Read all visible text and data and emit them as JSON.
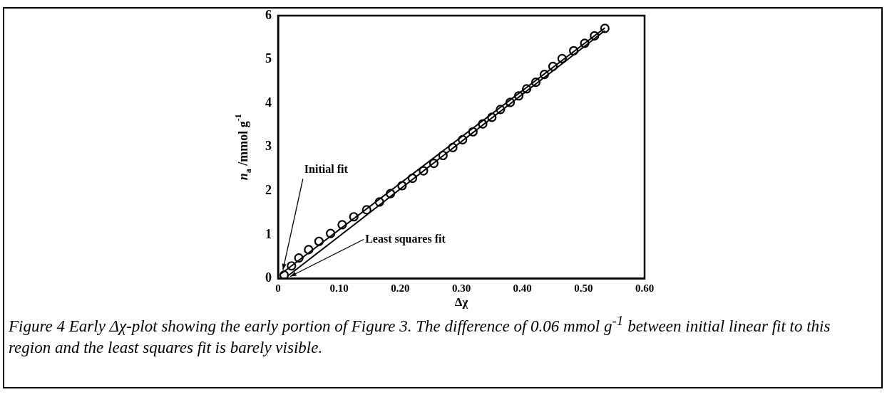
{
  "chart_data": {
    "type": "scatter",
    "xlabel": "Δχ",
    "ylabel": "n$_{a}$ /mmol g$^{-1}$",
    "xlim": [
      0,
      0.6
    ],
    "xticks": [
      0,
      {
        "value": 0.1,
        "label": "0.10"
      },
      {
        "value": 0.2,
        "label": "0.20"
      },
      {
        "value": 0.3,
        "label": "0.30"
      },
      {
        "value": 0.4,
        "label": "0.40"
      },
      {
        "value": 0.5,
        "label": "0.50"
      },
      {
        "value": 0.6,
        "label": "0.60"
      }
    ],
    "ylim": [
      0,
      6
    ],
    "yticks": [
      0,
      1,
      2,
      3,
      4,
      5,
      6
    ],
    "grid": false,
    "legend": false,
    "marker": "circle",
    "series": [
      {
        "color": "#000000",
        "x": [
          0.01,
          0.022,
          0.034,
          0.05,
          0.067,
          0.086,
          0.105,
          0.124,
          0.145,
          0.166,
          0.184,
          0.203,
          0.22,
          0.238,
          0.255,
          0.27,
          0.286,
          0.302,
          0.319,
          0.335,
          0.35,
          0.364,
          0.38,
          0.394,
          0.407,
          0.422,
          0.436,
          0.45,
          0.465,
          0.484,
          0.502,
          0.518,
          0.535
        ],
        "values": [
          0.08,
          0.29,
          0.47,
          0.66,
          0.85,
          1.03,
          1.23,
          1.41,
          1.57,
          1.75,
          1.94,
          2.12,
          2.29,
          2.46,
          2.63,
          2.81,
          2.99,
          3.17,
          3.35,
          3.53,
          3.68,
          3.86,
          4.02,
          4.17,
          4.33,
          4.48,
          4.66,
          4.84,
          5.02,
          5.2,
          5.37,
          5.54,
          5.71
        ]
      },
      {
        "type": "line",
        "marker": "none",
        "color": "#000000",
        "x": [
          0.005,
          0.535
        ],
        "values": [
          0.11,
          5.72
        ]
      },
      {
        "type": "line",
        "marker": "none",
        "color": "#000000",
        "x": [
          0.015,
          0.535
        ],
        "values": [
          0.05,
          5.66
        ]
      }
    ],
    "annotations": [
      {
        "text": "Initial fit",
        "x": 0.008,
        "y": 0.2
      },
      {
        "text": "Least squares fit",
        "x": 0.02,
        "y": 0.05
      },
      "Figure 4 Early Δχ-plot showing the early portion of Figure 3.  The difference of 0.06 mmol g$^{-1}$ between initial linear fit to this region and the least squares fit is barely visible."
    ]
  }
}
